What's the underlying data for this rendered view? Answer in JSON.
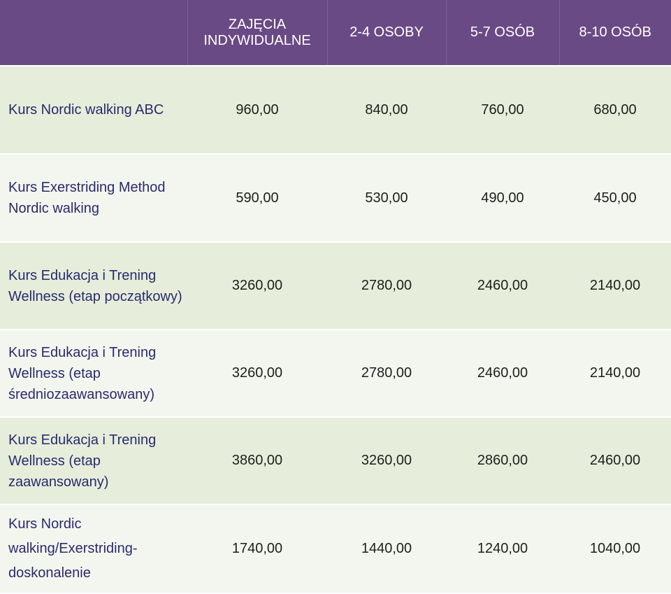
{
  "header": {
    "col1": "",
    "col2": "ZAJĘCIA INDYWIDUALNE",
    "col3": "2-4 OSOBY",
    "col4": "5-7 OSÓB",
    "col5": "8-10 OSÓB"
  },
  "rows": [
    {
      "name": "Kurs Nordic walking ABC",
      "values": [
        "960,00",
        "840,00",
        "760,00",
        "680,00"
      ]
    },
    {
      "name": "Kurs Exerstriding Method Nordic walking",
      "values": [
        "590,00",
        "530,00",
        "490,00",
        "450,00"
      ]
    },
    {
      "name": "Kurs Edukacja i Trening Wellness (etap początkowy)",
      "values": [
        "3260,00",
        "2780,00",
        "2460,00",
        "2140,00"
      ]
    },
    {
      "name": "Kurs Edukacja i Trening Wellness (etap średniozaawansowany)",
      "values": [
        "3260,00",
        "2780,00",
        "2460,00",
        "2140,00"
      ]
    },
    {
      "name": "Kurs Edukacja i Trening Wellness (etap zaawansowany)",
      "values": [
        "3860,00",
        "3260,00",
        "2860,00",
        "2460,00"
      ]
    },
    {
      "name": "Kurs Nordic walking/Exerstriding-doskonalenie",
      "values": [
        "1740,00",
        "1440,00",
        "1240,00",
        "1040,00"
      ]
    }
  ]
}
